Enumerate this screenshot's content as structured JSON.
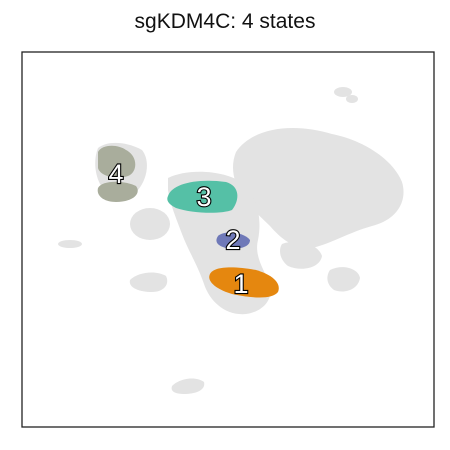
{
  "chart_data": {
    "type": "scatter",
    "title": "sgKDM4C: 4 states",
    "xlabel": "",
    "ylabel": "",
    "grid": false,
    "legend": "none",
    "background_color": "#e3e3e3",
    "states": [
      {
        "label": "1",
        "color": "#e5870f"
      },
      {
        "label": "2",
        "color": "#6f79b8"
      },
      {
        "label": "3",
        "color": "#55c0a6"
      },
      {
        "label": "4",
        "color": "#a9ad9c"
      }
    ]
  }
}
